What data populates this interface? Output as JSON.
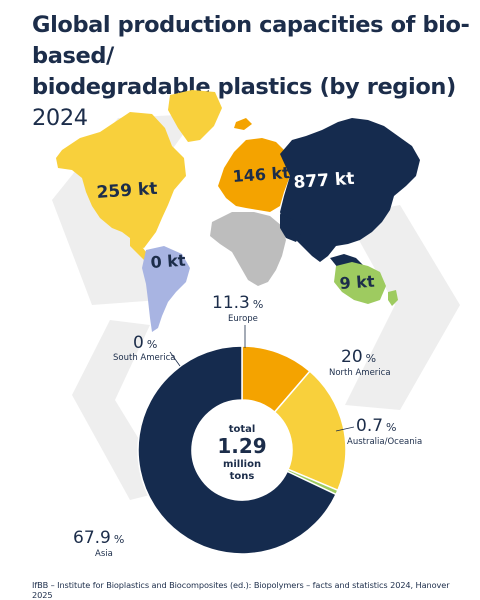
{
  "title": {
    "line1": "Global production capacities of bio-based/",
    "line2": "biodegradable plastics (by region)",
    "year": "2024"
  },
  "colors": {
    "asia": "#152b4e",
    "europe": "#f4a300",
    "north_america": "#f8d03c",
    "south_america": "#a8b4e2",
    "australia": "#9ecb60",
    "africa": "#bdbdbd",
    "text": "#1c2d4a"
  },
  "map_labels": {
    "north_america": "259 kt",
    "europe": "146 kt",
    "asia": "877 kt",
    "south_america": "0 kt",
    "australia": "9 kt"
  },
  "donut_center": {
    "line1": "total",
    "line2": "1.29",
    "line3": "million",
    "line4": "tons"
  },
  "chart_data": {
    "type": "pie",
    "title": "Global production capacities of bio-based/biodegradable plastics (by region) 2024",
    "unit": "%",
    "slices": [
      {
        "name": "Europe",
        "value": 11.3,
        "color": "#f4a300"
      },
      {
        "name": "North America",
        "value": 20,
        "color": "#f8d03c"
      },
      {
        "name": "Australia/Oceania",
        "value": 0.7,
        "color": "#9ecb60"
      },
      {
        "name": "Asia",
        "value": 67.9,
        "color": "#152b4e"
      },
      {
        "name": "South America",
        "value": 0,
        "color": "#a8b4e2"
      }
    ],
    "value_labels": [
      "11.3",
      "20",
      "0.7",
      "67.9",
      "0"
    ]
  },
  "footer": "IfBB – Institute for Bioplastics and Biocomposites (ed.): Biopolymers – facts and statistics 2024, Hanover 2025"
}
